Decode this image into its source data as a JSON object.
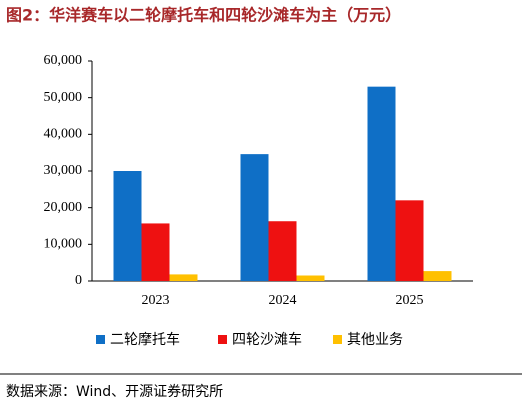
{
  "chart_data": {
    "type": "bar",
    "title": "图2：华洋赛车以二轮摩托车和四轮沙滩车为主（万元）",
    "categories": [
      "2023",
      "2024",
      "2025"
    ],
    "series": [
      {
        "name": "二轮摩托车",
        "color": "#0f6fc6",
        "values": [
          30000,
          34600,
          53000
        ]
      },
      {
        "name": "四轮沙滩车",
        "color": "#ee1111",
        "values": [
          15700,
          16300,
          22000
        ]
      },
      {
        "name": "其他业务",
        "color": "#ffc000",
        "values": [
          1800,
          1500,
          2700
        ]
      }
    ],
    "ylim": [
      0,
      60000
    ],
    "yticks": [
      0,
      {
        "value": 10000,
        "label": "10,000"
      },
      {
        "value": 20000,
        "label": "20,000"
      },
      {
        "value": 30000,
        "label": "30,000"
      },
      {
        "value": 40000,
        "label": "40,000"
      },
      {
        "value": 50000,
        "label": "50,000"
      },
      {
        "value": 60000,
        "label": "60,000"
      }
    ],
    "source": "数据来源：Wind、开源证券研究所"
  }
}
